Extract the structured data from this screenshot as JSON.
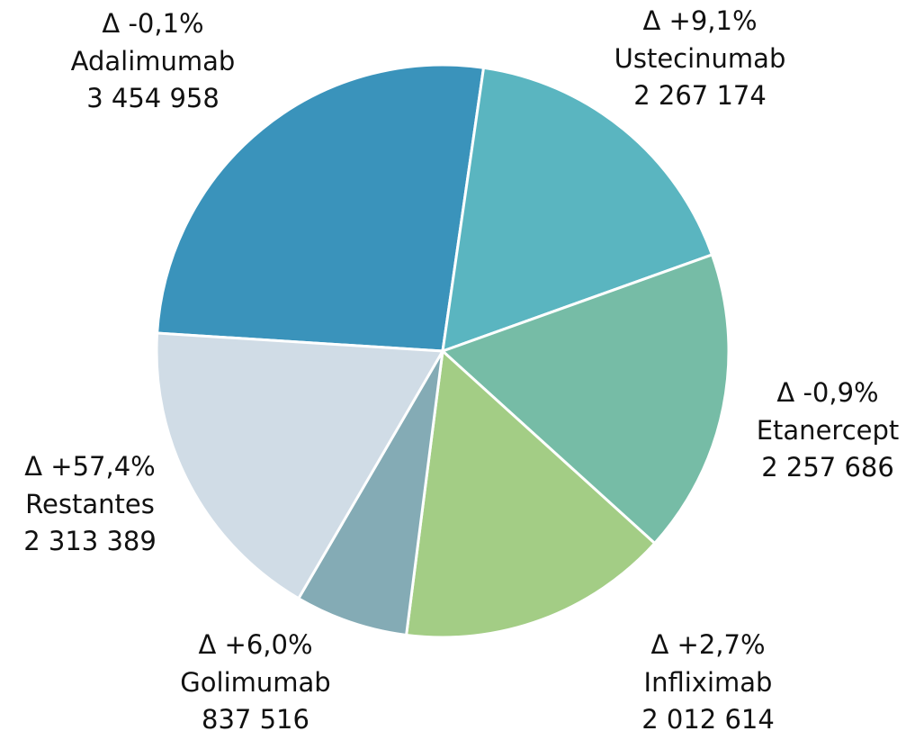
{
  "chart_data": {
    "type": "pie",
    "categories": [
      "Adalimumab",
      "Ustecinumab",
      "Etanercept",
      "Infliximab",
      "Golimumab",
      "Restantes"
    ],
    "values": [
      3454958,
      2267174,
      2257686,
      2012614,
      837516,
      2313389
    ],
    "value_labels": [
      "3 454 958",
      "2 267 174",
      "2 257 686",
      "2 012 614",
      "837 516",
      "2 313 389"
    ],
    "changes": [
      "Δ -0,1%",
      "Δ +9,1%",
      "Δ -0,9%",
      "Δ +2,7%",
      "Δ +6,0%",
      "Δ +57,4%"
    ],
    "colors": [
      "#3a93bb",
      "#5ab5c0",
      "#76bca6",
      "#a3cd85",
      "#84abb5",
      "#d0dce6"
    ]
  }
}
